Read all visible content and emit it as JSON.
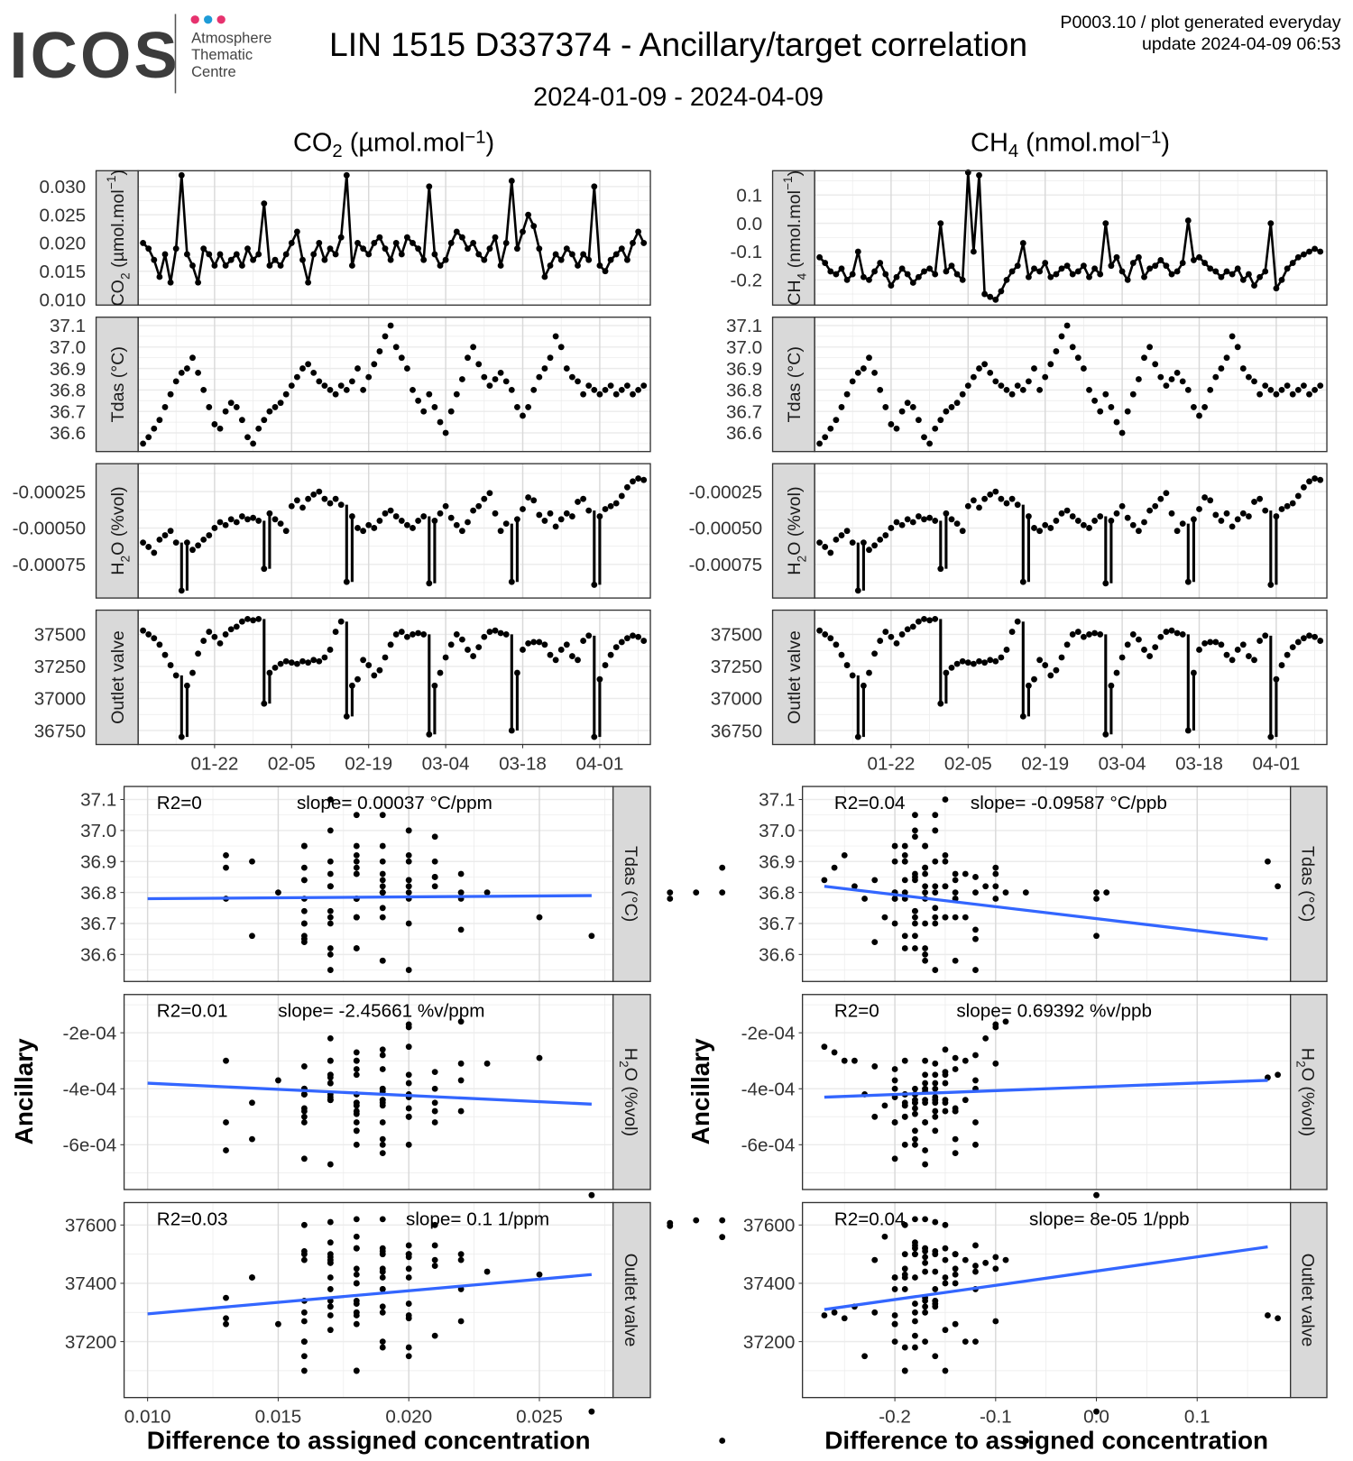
{
  "header": {
    "logo_text": "ICOS",
    "logo_sub": [
      "Atmosphere",
      "Thematic",
      "Centre"
    ],
    "title": "LIN 1515 D337374 - Ancillary/target correlation",
    "meta_line1": "P0003.10 / plot generated everyday",
    "meta_line2": "update  2024-04-09 06:53",
    "date_range": "2024-01-09 - 2024-04-09",
    "columns": [
      [
        {
          "t": "CO"
        },
        {
          "t": "2",
          "sub": true
        },
        {
          "t": " (µmol.mol"
        },
        {
          "t": "−1",
          "sup": true
        },
        {
          "t": ")"
        }
      ],
      [
        {
          "t": "CH"
        },
        {
          "t": "4",
          "sub": true
        },
        {
          "t": " (nmol.mol"
        },
        {
          "t": "−1",
          "sup": true
        },
        {
          "t": ")"
        }
      ]
    ]
  },
  "colors": {
    "logo_grey": "#3c3c3c",
    "dot_pink": "#e6326e",
    "dot_blue": "#1e9bd7",
    "fit_line": "#3366ff",
    "strip_fill": "#d9d9d9",
    "points": "#000000"
  },
  "strips": {
    "co2": [
      {
        "t": "CO"
      },
      {
        "t": "2",
        "sub": true
      },
      {
        "t": " (µmol.mol"
      },
      {
        "t": "−1",
        "sup": true
      },
      {
        "t": ")"
      }
    ],
    "ch4": [
      {
        "t": "CH"
      },
      {
        "t": "4",
        "sub": true
      },
      {
        "t": " (nmol.mol"
      },
      {
        "t": "−1",
        "sup": true
      },
      {
        "t": ")"
      }
    ],
    "tdas": [
      {
        "t": "Tdas (°C)"
      }
    ],
    "h2o": [
      {
        "t": "H"
      },
      {
        "t": "2",
        "sub": true
      },
      {
        "t": "O (%vol)"
      }
    ],
    "outlet": [
      {
        "t": "Outlet valve"
      }
    ]
  },
  "chart_data": {
    "type": "line",
    "time_series": {
      "start_date": "2024-01-09",
      "step_days": 1,
      "xlim_days": [
        -0.9,
        92.2
      ],
      "x_ticks": [
        {
          "label": "01-22",
          "day": 13
        },
        {
          "label": "02-05",
          "day": 27
        },
        {
          "label": "02-19",
          "day": 41
        },
        {
          "label": "03-04",
          "day": 55
        },
        {
          "label": "03-18",
          "day": 69
        },
        {
          "label": "04-01",
          "day": 83
        }
      ],
      "co2_diff": [
        0.02,
        0.019,
        0.017,
        0.014,
        0.018,
        0.013,
        0.019,
        0.032,
        0.018,
        0.016,
        0.013,
        0.019,
        0.018,
        0.016,
        0.018,
        0.016,
        0.017,
        0.018,
        0.016,
        0.019,
        0.017,
        0.018,
        0.027,
        0.016,
        0.017,
        0.016,
        0.018,
        0.02,
        0.022,
        0.017,
        0.013,
        0.018,
        0.02,
        0.017,
        0.019,
        0.018,
        0.021,
        0.032,
        0.016,
        0.02,
        0.019,
        0.018,
        0.02,
        0.021,
        0.019,
        0.017,
        0.02,
        0.018,
        0.021,
        0.02,
        0.019,
        0.017,
        0.03,
        0.018,
        0.016,
        0.017,
        0.02,
        0.022,
        0.021,
        0.019,
        0.02,
        0.018,
        0.017,
        0.019,
        0.021,
        0.016,
        0.02,
        0.031,
        0.019,
        0.022,
        0.025,
        0.023,
        0.019,
        0.014,
        0.016,
        0.018,
        0.017,
        0.019,
        0.018,
        0.016,
        0.018,
        0.017,
        0.03,
        0.016,
        0.015,
        0.017,
        0.018,
        0.019,
        0.017,
        0.02,
        0.022,
        0.02
      ],
      "ch4_diff": [
        -0.12,
        -0.14,
        -0.17,
        -0.18,
        -0.16,
        -0.2,
        -0.18,
        -0.1,
        -0.19,
        -0.2,
        -0.17,
        -0.14,
        -0.18,
        -0.22,
        -0.19,
        -0.16,
        -0.18,
        -0.21,
        -0.19,
        -0.17,
        -0.16,
        -0.18,
        0.0,
        -0.17,
        -0.15,
        -0.18,
        -0.2,
        0.18,
        -0.1,
        0.17,
        -0.25,
        -0.26,
        -0.27,
        -0.24,
        -0.2,
        -0.17,
        -0.15,
        -0.07,
        -0.19,
        -0.16,
        -0.17,
        -0.14,
        -0.19,
        -0.18,
        -0.16,
        -0.15,
        -0.18,
        -0.17,
        -0.15,
        -0.19,
        -0.16,
        -0.18,
        0.0,
        -0.15,
        -0.12,
        -0.17,
        -0.2,
        -0.14,
        -0.12,
        -0.19,
        -0.16,
        -0.15,
        -0.13,
        -0.15,
        -0.18,
        -0.17,
        -0.14,
        0.01,
        -0.13,
        -0.12,
        -0.14,
        -0.16,
        -0.17,
        -0.19,
        -0.17,
        -0.18,
        -0.16,
        -0.2,
        -0.18,
        -0.22,
        -0.19,
        -0.17,
        0.0,
        -0.23,
        -0.2,
        -0.16,
        -0.14,
        -0.12,
        -0.11,
        -0.1,
        -0.09,
        -0.1
      ],
      "tdas": [
        36.55,
        36.58,
        36.62,
        36.66,
        36.72,
        36.78,
        36.84,
        36.88,
        36.9,
        36.95,
        36.88,
        36.8,
        36.72,
        36.64,
        36.62,
        36.7,
        36.74,
        36.72,
        36.66,
        36.58,
        36.55,
        36.62,
        36.66,
        36.7,
        36.72,
        36.74,
        36.78,
        36.82,
        36.86,
        36.9,
        36.92,
        36.88,
        36.84,
        36.82,
        36.8,
        36.78,
        36.82,
        36.8,
        36.84,
        36.9,
        36.8,
        36.86,
        36.92,
        36.98,
        37.05,
        37.1,
        37.0,
        36.95,
        36.9,
        36.8,
        36.75,
        36.7,
        36.78,
        36.72,
        36.65,
        36.6,
        36.7,
        36.78,
        36.85,
        36.95,
        37.0,
        36.92,
        36.86,
        36.82,
        36.85,
        36.88,
        36.84,
        36.8,
        36.72,
        36.68,
        36.72,
        36.8,
        36.86,
        36.9,
        36.95,
        37.05,
        37.0,
        36.9,
        36.86,
        36.84,
        36.78,
        36.82,
        36.8,
        36.78,
        36.8,
        36.82,
        36.78,
        36.8,
        36.82,
        36.78,
        36.8,
        36.82
      ],
      "h2o": [
        -0.0006,
        -0.00063,
        -0.00067,
        -0.00058,
        -0.00055,
        -0.00052,
        -0.0006,
        -0.00093,
        -0.0006,
        -0.00065,
        -0.00062,
        -0.00058,
        -0.00055,
        -0.0005,
        -0.00046,
        -0.00048,
        -0.00044,
        -0.00046,
        -0.00042,
        -0.00044,
        -0.00043,
        -0.00045,
        -0.00078,
        -0.0004,
        -0.00044,
        -0.00047,
        -0.00052,
        -0.00035,
        -0.00031,
        -0.00036,
        -0.0003,
        -0.00027,
        -0.00025,
        -0.0003,
        -0.00033,
        -0.0003,
        -0.00034,
        -0.00087,
        -0.00042,
        -0.0005,
        -0.00052,
        -0.00048,
        -0.0005,
        -0.00045,
        -0.0004,
        -0.00038,
        -0.00042,
        -0.00045,
        -0.00048,
        -0.0005,
        -0.00045,
        -0.00042,
        -0.00088,
        -0.00045,
        -0.0004,
        -0.00035,
        -0.00043,
        -0.00048,
        -0.00052,
        -0.00046,
        -0.00038,
        -0.00035,
        -0.0003,
        -0.00026,
        -0.0004,
        -0.00052,
        -0.00047,
        -0.00087,
        -0.00044,
        -0.00037,
        -0.00029,
        -0.00031,
        -0.00041,
        -0.00045,
        -0.0004,
        -0.00049,
        -0.00044,
        -0.0004,
        -0.00042,
        -0.00032,
        -0.0003,
        -0.00038,
        -0.00089,
        -0.00042,
        -0.00037,
        -0.00035,
        -0.00033,
        -0.00028,
        -0.00022,
        -0.00018,
        -0.00016,
        -0.00017
      ],
      "outlet_valve": [
        37530,
        37500,
        37470,
        37420,
        37340,
        37260,
        37180,
        36700,
        37100,
        37200,
        37350,
        37450,
        37520,
        37480,
        37430,
        37500,
        37540,
        37560,
        37600,
        37620,
        37610,
        37620,
        36960,
        37200,
        37240,
        37270,
        37290,
        37280,
        37270,
        37290,
        37280,
        37300,
        37290,
        37320,
        37380,
        37520,
        37600,
        36860,
        37100,
        37150,
        37300,
        37260,
        37180,
        37220,
        37320,
        37420,
        37500,
        37520,
        37480,
        37500,
        37510,
        37500,
        36720,
        37100,
        37200,
        37320,
        37420,
        37500,
        37460,
        37380,
        37330,
        37400,
        37480,
        37520,
        37530,
        37510,
        37500,
        36750,
        37200,
        37380,
        37430,
        37440,
        37440,
        37420,
        37340,
        37300,
        37380,
        37420,
        37330,
        37300,
        37450,
        37490,
        36700,
        37150,
        37260,
        37340,
        37400,
        37440,
        37470,
        37490,
        37480,
        37450
      ]
    },
    "axes": {
      "co2": {
        "lim": [
          0.009,
          0.0328
        ],
        "ticks": [
          0.01,
          0.015,
          0.02,
          0.025,
          0.03
        ],
        "tick_labels": [
          "0.010",
          "0.015",
          "0.020",
          "0.025",
          "0.030"
        ]
      },
      "ch4": {
        "lim": [
          -0.289,
          0.186
        ],
        "ticks": [
          -0.2,
          -0.1,
          0.0,
          0.1
        ],
        "tick_labels": [
          "-0.2",
          "-0.1",
          "0.0",
          "0.1"
        ]
      },
      "tdas": {
        "lim": [
          36.513,
          37.139
        ],
        "ticks": [
          36.6,
          36.7,
          36.8,
          36.9,
          37.0,
          37.1
        ],
        "tick_labels": [
          "36.6",
          "36.7",
          "36.8",
          "36.9",
          "37.0",
          "37.1"
        ]
      },
      "h2o": {
        "lim": [
          -0.000981,
          -5.8e-05
        ],
        "ticks": [
          -0.00075,
          -0.0005,
          -0.00025
        ],
        "tick_labels": [
          "-0.00075",
          "-0.00050",
          "-0.00025"
        ]
      },
      "outlet": {
        "lim": [
          36641,
          37689
        ],
        "ticks": [
          36750,
          37000,
          37250,
          37500
        ],
        "tick_labels": [
          "36750",
          "37000",
          "37250",
          "37500"
        ]
      },
      "sc_tdas": {
        "lim": [
          36.513,
          37.142
        ],
        "ticks": [
          36.6,
          36.7,
          36.8,
          36.9,
          37.0,
          37.1
        ],
        "tick_labels": [
          "36.6",
          "36.7",
          "36.8",
          "36.9",
          "37.0",
          "37.1"
        ]
      },
      "sc_h2o": {
        "lim": [
          -0.00076,
          -6.33e-05
        ],
        "ticks": [
          -0.0006,
          -0.0004,
          -0.0002
        ],
        "tick_labels": [
          "-6e-04",
          "-4e-04",
          "-2e-04"
        ]
      },
      "sc_outlet": {
        "lim": [
          37008,
          37677
        ],
        "ticks": [
          37200,
          37400,
          37600
        ],
        "tick_labels": [
          "37200",
          "37400",
          "37600"
        ]
      },
      "sc_x_co2": {
        "lim": [
          0.0091,
          0.02782
        ],
        "ticks": [
          0.01,
          0.015,
          0.02,
          0.025
        ],
        "tick_labels": [
          "0.010",
          "0.015",
          "0.020",
          "0.025"
        ]
      },
      "sc_x_ch4": {
        "lim": [
          -0.2917,
          0.1926
        ],
        "ticks": [
          -0.2,
          -0.1,
          0.0,
          0.1
        ],
        "tick_labels": [
          "-0.2",
          "-0.1",
          "0.0",
          "0.1"
        ]
      }
    },
    "scatter": {
      "type": "scatter",
      "xlabel": "Difference to assigned concentration",
      "ylabel": "Ancillary",
      "regressions": [
        {
          "target": "co2",
          "ancillary": "tdas",
          "r2_label": "R2=0",
          "slope_label": "slope= 0.00037 °C/ppm",
          "line": [
            [
              0.01,
              36.78
            ],
            [
              0.027,
              36.79
            ]
          ]
        },
        {
          "target": "co2",
          "ancillary": "h2o",
          "r2_label": "R2=0.01",
          "slope_label": "slope= -2.45661 %v/ppm",
          "line": [
            [
              0.01,
              -0.00038
            ],
            [
              0.027,
              -0.000455
            ]
          ]
        },
        {
          "target": "co2",
          "ancillary": "outlet",
          "r2_label": "R2=0.03",
          "slope_label": "slope= 0.1 1/ppm",
          "line": [
            [
              0.01,
              37295
            ],
            [
              0.027,
              37430
            ]
          ]
        },
        {
          "target": "ch4",
          "ancillary": "tdas",
          "r2_label": "R2=0.04",
          "slope_label": "slope= -0.09587 °C/ppb",
          "line": [
            [
              -0.27,
              36.82
            ],
            [
              0.17,
              36.65
            ]
          ]
        },
        {
          "target": "ch4",
          "ancillary": "h2o",
          "r2_label": "R2=0",
          "slope_label": "slope= 0.69392 %v/ppb",
          "line": [
            [
              -0.27,
              -0.00043
            ],
            [
              0.17,
              -0.00037
            ]
          ]
        },
        {
          "target": "ch4",
          "ancillary": "outlet",
          "r2_label": "R2=0.04",
          "slope_label": "slope= 8e-05 1/ppb",
          "line": [
            [
              -0.27,
              37310
            ],
            [
              0.17,
              37525
            ]
          ]
        }
      ]
    }
  }
}
